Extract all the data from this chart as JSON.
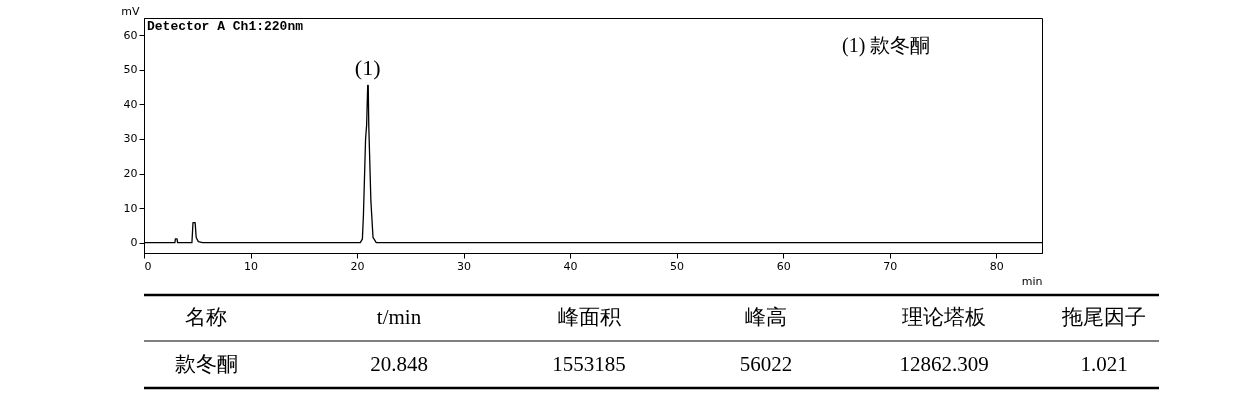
{
  "chart_data": {
    "type": "line",
    "title": "Detector A Ch1:220nm",
    "xlabel": "min",
    "ylabel": "mV",
    "xlim": [
      0,
      84.3
    ],
    "ylim": [
      -3,
      65
    ],
    "xticks": [
      0,
      10,
      20,
      30,
      40,
      50,
      60,
      70,
      80
    ],
    "yticks": [
      0,
      10,
      20,
      30,
      40,
      50,
      60
    ],
    "grid": false,
    "marker": "none",
    "line_style": "solid",
    "series": [
      {
        "color": "#000000",
        "x": [
          0,
          2.9,
          2.95,
          3.1,
          3.15,
          4.5,
          4.6,
          4.8,
          4.9,
          5.1,
          5.5,
          20.3,
          20.5,
          20.6,
          20.8,
          20.9,
          21.0,
          21.05,
          21.1,
          21.3,
          21.5,
          21.8,
          84.3
        ],
        "values": [
          0,
          0,
          1.1,
          1.1,
          0,
          0,
          5.8,
          5.8,
          1.5,
          0.3,
          0,
          0,
          1,
          8,
          30,
          34,
          45.5,
          45.5,
          34,
          12,
          1.5,
          0,
          0
        ]
      }
    ],
    "annotations": [
      {
        "text": "(1)",
        "x": 21.0,
        "y": 45.5
      },
      "(1)  款冬酮",
      "名称",
      "t/min",
      "峰面积",
      "峰高",
      "理论塔板",
      "拖尾因子",
      "款冬酮",
      "20.848",
      "1553185",
      "56022",
      "12862.309",
      "1.021"
    ]
  }
}
